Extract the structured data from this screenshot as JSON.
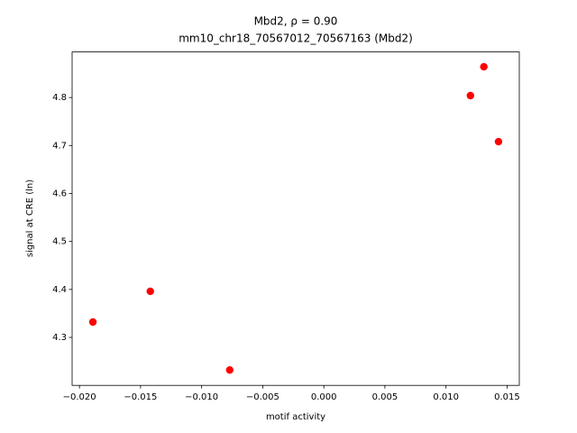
{
  "chart_data": {
    "type": "scatter",
    "title": "Mbd2, ρ = 0.90",
    "subtitle": "mm10_chr18_70567012_70567163 (Mbd2)",
    "x_label": "motif activity",
    "y_label": "signal at CRE (ln)",
    "color": "#ff0000",
    "x": [
      -0.0189,
      -0.0142,
      -0.0077,
      0.012,
      0.0131,
      0.0143
    ],
    "values": [
      4.332,
      4.396,
      4.232,
      4.804,
      4.864,
      4.708
    ],
    "xlim": [
      -0.0206,
      0.016
    ],
    "ylim": [
      4.2,
      4.895
    ],
    "xticks": [
      {
        "value": -0.02,
        "label": "−0.020"
      },
      {
        "value": -0.015,
        "label": "−0.015"
      },
      {
        "value": -0.01,
        "label": "−0.010"
      },
      {
        "value": -0.005,
        "label": "−0.005"
      },
      {
        "value": 0,
        "label": "0.000"
      },
      {
        "value": 0.005,
        "label": "0.005"
      },
      {
        "value": 0.01,
        "label": "0.010"
      },
      {
        "value": 0.015,
        "label": "0.015"
      }
    ],
    "yticks": [
      4.3,
      4.4,
      4.5,
      4.6,
      4.7,
      4.8
    ]
  }
}
